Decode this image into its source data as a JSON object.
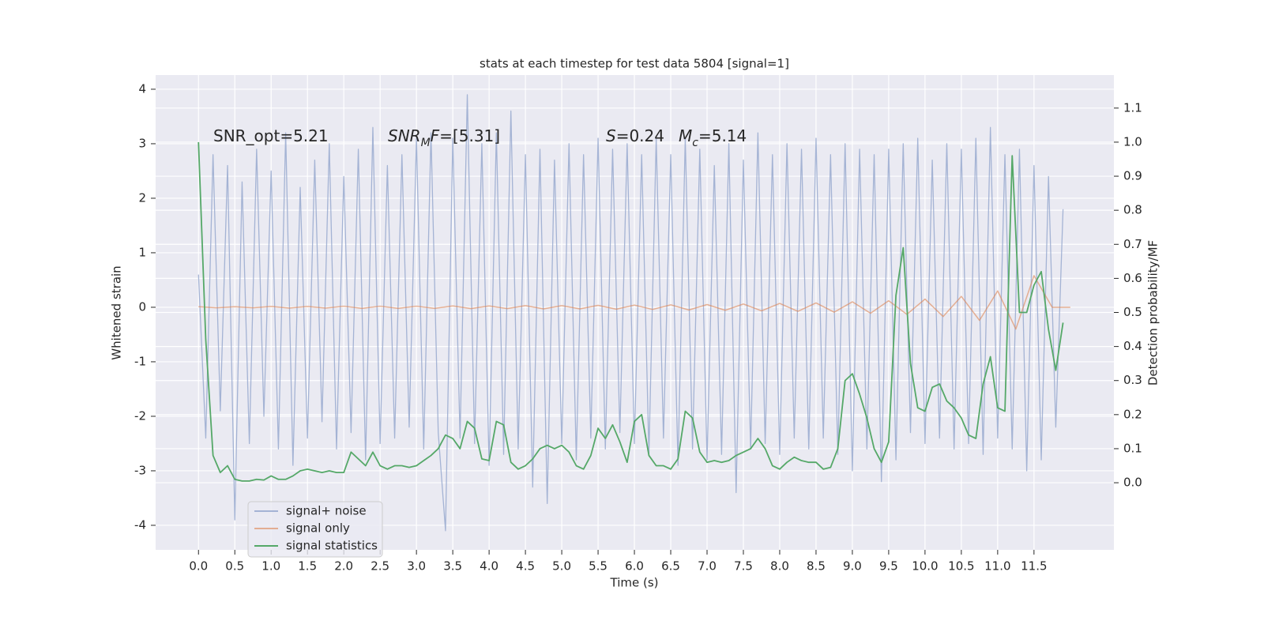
{
  "chart_data": {
    "type": "line",
    "title": "stats at each timestep for test data 5804 [signal=1]",
    "xlabel": "Time (s)",
    "ylabel": "Whitened strain",
    "y2label": "Detection probability/MF",
    "xlim": [
      -0.59,
      12.6
    ],
    "ylim": [
      -4.45,
      4.26
    ],
    "y2lim": [
      -0.197,
      1.197
    ],
    "xticks": [
      {
        "value": 0,
        "label": "0.0"
      },
      0.5,
      {
        "value": 1,
        "label": "1.0"
      },
      1.5,
      {
        "value": 2,
        "label": "2.0"
      },
      2.5,
      {
        "value": 3,
        "label": "3.0"
      },
      3.5,
      {
        "value": 4,
        "label": "4.0"
      },
      4.5,
      {
        "value": 5,
        "label": "5.0"
      },
      5.5,
      {
        "value": 6,
        "label": "6.0"
      },
      6.5,
      {
        "value": 7,
        "label": "7.0"
      },
      7.5,
      {
        "value": 8,
        "label": "8.0"
      },
      8.5,
      {
        "value": 9,
        "label": "9.0"
      },
      9.5,
      {
        "value": 10,
        "label": "10.0"
      },
      10.5,
      {
        "value": 11,
        "label": "11.0"
      },
      11.5
    ],
    "yticks": [
      -4,
      -3,
      -2,
      -1,
      0,
      1,
      2,
      3,
      4
    ],
    "y2ticks": [
      {
        "value": 0,
        "label": "0.0"
      },
      0.1,
      0.2,
      0.3,
      0.4,
      0.5,
      0.6,
      0.7,
      0.8,
      0.9,
      {
        "value": 1,
        "label": "1.0"
      },
      1.1
    ],
    "grid": true,
    "legend": "lower left",
    "annotations": [
      {
        "parts": [
          {
            "text": "SNR_opt=5.21",
            "style": "normal"
          }
        ]
      },
      {
        "parts": [
          {
            "text": "SNR",
            "style": "italic"
          },
          {
            "text": "M",
            "style": "sub"
          },
          {
            "text": "F",
            "style": "italic"
          },
          {
            "text": "=[5.31]",
            "style": "normal"
          }
        ]
      },
      {
        "parts": [
          {
            "text": "S",
            "style": "italic"
          },
          {
            "text": "=0.24",
            "style": "normal"
          }
        ]
      },
      {
        "parts": [
          {
            "text": "M",
            "style": "italic"
          },
          {
            "text": "c",
            "style": "sub"
          },
          {
            "text": "=5.14",
            "style": "normal"
          }
        ]
      }
    ],
    "series": [
      {
        "name": "signal+ noise",
        "color": "#98a9cf",
        "x": [
          0,
          0.1,
          0.2,
          0.3,
          0.4,
          0.5,
          0.6,
          0.7,
          0.8,
          0.9,
          1,
          1.1,
          1.2,
          1.3,
          1.4,
          1.5,
          1.6,
          1.7,
          1.8,
          1.9,
          2,
          2.1,
          2.2,
          2.3,
          2.4,
          2.5,
          2.6,
          2.7,
          2.8,
          2.9,
          3,
          3.1,
          3.2,
          3.3,
          3.4,
          3.5,
          3.6,
          3.7,
          3.8,
          3.9,
          4,
          4.1,
          4.2,
          4.3,
          4.4,
          4.5,
          4.6,
          4.7,
          4.8,
          4.9,
          5,
          5.1,
          5.2,
          5.3,
          5.4,
          5.5,
          5.6,
          5.7,
          5.8,
          5.9,
          6,
          6.1,
          6.2,
          6.3,
          6.4,
          6.5,
          6.6,
          6.7,
          6.8,
          6.9,
          7,
          7.1,
          7.2,
          7.3,
          7.4,
          7.5,
          7.6,
          7.7,
          7.8,
          7.9,
          8,
          8.1,
          8.2,
          8.3,
          8.4,
          8.5,
          8.6,
          8.7,
          8.8,
          8.9,
          9,
          9.1,
          9.2,
          9.3,
          9.4,
          9.5,
          9.6,
          9.7,
          9.8,
          9.9,
          10,
          10.1,
          10.2,
          10.3,
          10.4,
          10.5,
          10.6,
          10.7,
          10.8,
          10.9,
          11,
          11.1,
          11.2,
          11.3,
          11.4,
          11.5,
          11.6,
          11.7,
          11.8,
          11.9
        ],
        "values": [
          0.6,
          -2.4,
          2.8,
          -1.9,
          2.6,
          -3.9,
          2.3,
          -2.5,
          2.9,
          -2.0,
          2.5,
          -2.6,
          3.2,
          -2.9,
          2.2,
          -2.4,
          2.7,
          -2.1,
          3.0,
          -2.6,
          2.4,
          -2.3,
          2.9,
          -2.8,
          3.3,
          -2.5,
          2.6,
          -2.4,
          2.8,
          -2.2,
          3.1,
          -2.6,
          3.2,
          -2.3,
          -4.1,
          3.1,
          -2.4,
          3.9,
          -2.5,
          3.0,
          -2.9,
          3.2,
          -2.7,
          3.6,
          -2.6,
          2.8,
          -3.3,
          2.9,
          -3.6,
          2.7,
          -2.5,
          3.0,
          -2.8,
          2.8,
          -2.4,
          3.1,
          -2.6,
          2.9,
          -2.3,
          3.0,
          -2.5,
          2.8,
          -2.7,
          3.1,
          -2.4,
          2.8,
          -2.9,
          3.1,
          -2.6,
          2.9,
          -2.8,
          2.6,
          -2.7,
          3.0,
          -3.4,
          2.7,
          -2.6,
          3.2,
          -2.5,
          2.8,
          -2.7,
          3.0,
          -2.4,
          2.9,
          -2.6,
          3.1,
          -2.4,
          2.8,
          -2.7,
          3.0,
          -3.0,
          2.9,
          -2.6,
          2.8,
          -3.2,
          2.9,
          -2.8,
          3.0,
          -2.3,
          3.1,
          -2.5,
          2.7,
          -2.4,
          3.0,
          -2.6,
          2.9,
          -2.5,
          3.1,
          -2.7,
          3.3,
          -2.4,
          2.8,
          -2.6,
          2.9,
          -3.0,
          2.6,
          -2.8,
          2.4,
          -2.2,
          1.8
        ]
      },
      {
        "name": "signal only",
        "color": "#dd8452",
        "x": [
          0,
          0.25,
          0.5,
          0.75,
          1,
          1.25,
          1.5,
          1.75,
          2,
          2.25,
          2.5,
          2.75,
          3,
          3.25,
          3.5,
          3.75,
          4,
          4.25,
          4.5,
          4.75,
          5,
          5.25,
          5.5,
          5.75,
          6,
          6.25,
          6.5,
          6.75,
          7,
          7.25,
          7.5,
          7.75,
          8,
          8.25,
          8.5,
          8.75,
          9,
          9.25,
          9.5,
          9.75,
          10,
          10.25,
          10.5,
          10.75,
          11,
          11.25,
          11.5,
          11.75,
          12
        ],
        "values": [
          0.01,
          -0.01,
          0.01,
          -0.01,
          0.015,
          -0.015,
          0.015,
          -0.015,
          0.02,
          -0.02,
          0.02,
          -0.02,
          0.02,
          -0.02,
          0.025,
          -0.025,
          0.025,
          -0.025,
          0.03,
          -0.03,
          0.03,
          -0.03,
          0.035,
          -0.035,
          0.04,
          -0.04,
          0.045,
          -0.05,
          0.05,
          -0.055,
          0.06,
          -0.065,
          0.07,
          -0.075,
          0.08,
          -0.09,
          0.1,
          -0.11,
          0.12,
          -0.13,
          0.15,
          -0.17,
          0.2,
          -0.24,
          0.3,
          -0.4,
          0.58,
          0,
          0
        ]
      },
      {
        "name": "signal statistics",
        "color": "#55a868",
        "axis": "y2",
        "x": [
          0,
          0.1,
          0.2,
          0.3,
          0.4,
          0.5,
          0.6,
          0.7,
          0.8,
          0.9,
          1,
          1.1,
          1.2,
          1.3,
          1.4,
          1.5,
          1.6,
          1.7,
          1.8,
          1.9,
          2,
          2.1,
          2.2,
          2.3,
          2.4,
          2.5,
          2.6,
          2.7,
          2.8,
          2.9,
          3,
          3.1,
          3.2,
          3.3,
          3.4,
          3.5,
          3.6,
          3.7,
          3.8,
          3.9,
          4,
          4.1,
          4.2,
          4.3,
          4.4,
          4.5,
          4.6,
          4.7,
          4.8,
          4.9,
          5,
          5.1,
          5.2,
          5.3,
          5.4,
          5.5,
          5.6,
          5.7,
          5.8,
          5.9,
          6,
          6.1,
          6.2,
          6.3,
          6.4,
          6.5,
          6.6,
          6.7,
          6.8,
          6.9,
          7,
          7.1,
          7.2,
          7.3,
          7.4,
          7.5,
          7.6,
          7.7,
          7.8,
          7.9,
          8,
          8.1,
          8.2,
          8.3,
          8.4,
          8.5,
          8.6,
          8.7,
          8.8,
          8.9,
          9,
          9.1,
          9.2,
          9.3,
          9.4,
          9.5,
          9.6,
          9.7,
          9.8,
          9.9,
          10,
          10.1,
          10.2,
          10.3,
          10.4,
          10.5,
          10.6,
          10.7,
          10.8,
          10.9,
          11,
          11.1,
          11.2,
          11.3,
          11.4,
          11.5,
          11.6,
          11.7,
          11.8,
          11.9
        ],
        "values": [
          1.0,
          0.42,
          0.08,
          0.03,
          0.05,
          0.01,
          0.005,
          0.005,
          0.01,
          0.008,
          0.02,
          0.01,
          0.01,
          0.02,
          0.035,
          0.04,
          0.035,
          0.03,
          0.035,
          0.03,
          0.03,
          0.09,
          0.07,
          0.05,
          0.09,
          0.05,
          0.04,
          0.05,
          0.05,
          0.045,
          0.05,
          0.065,
          0.08,
          0.1,
          0.14,
          0.13,
          0.1,
          0.18,
          0.16,
          0.07,
          0.065,
          0.18,
          0.17,
          0.06,
          0.04,
          0.05,
          0.07,
          0.1,
          0.11,
          0.1,
          0.11,
          0.09,
          0.05,
          0.04,
          0.08,
          0.16,
          0.13,
          0.17,
          0.12,
          0.06,
          0.18,
          0.2,
          0.08,
          0.05,
          0.05,
          0.04,
          0.07,
          0.21,
          0.19,
          0.09,
          0.06,
          0.065,
          0.06,
          0.065,
          0.08,
          0.09,
          0.1,
          0.13,
          0.1,
          0.05,
          0.04,
          0.06,
          0.075,
          0.065,
          0.06,
          0.06,
          0.04,
          0.045,
          0.1,
          0.3,
          0.32,
          0.26,
          0.19,
          0.1,
          0.06,
          0.12,
          0.55,
          0.69,
          0.35,
          0.22,
          0.21,
          0.28,
          0.29,
          0.24,
          0.22,
          0.19,
          0.14,
          0.13,
          0.29,
          0.37,
          0.22,
          0.21,
          0.96,
          0.5,
          0.5,
          0.58,
          0.62,
          0.45,
          0.33,
          0.47
        ]
      }
    ]
  }
}
